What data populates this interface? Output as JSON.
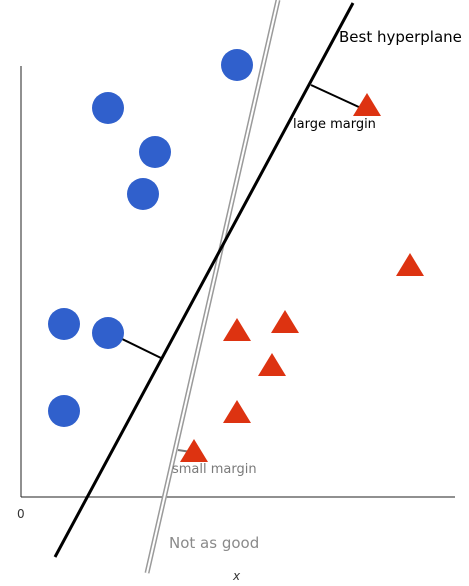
{
  "labels": {
    "best_hyperplane": "Best hyperplane",
    "large_margin": "large margin",
    "small_margin": "small margin",
    "not_as_good": "Not as good",
    "origin": "0",
    "x_axis": "x"
  },
  "colors": {
    "class_a": "#3060cc",
    "class_b": "#dd3311",
    "best_line": "#000000",
    "alt_line": "#999999"
  },
  "shapes": {
    "class_a": "circle",
    "class_b": "triangle"
  }
}
